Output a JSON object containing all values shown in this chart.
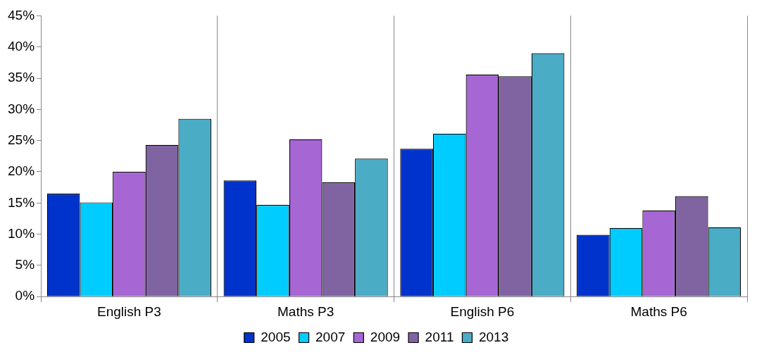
{
  "chart_data": {
    "type": "bar",
    "categories": [
      "English P3",
      "Maths P3",
      "English P6",
      "Maths P6"
    ],
    "series": [
      {
        "name": "2005",
        "color": "#0033cc",
        "values": [
          16.5,
          18.6,
          23.7,
          9.9
        ]
      },
      {
        "name": "2007",
        "color": "#00ccff",
        "values": [
          15.1,
          14.7,
          26.1,
          11.0
        ]
      },
      {
        "name": "2009",
        "color": "#a666d4",
        "values": [
          20.0,
          25.2,
          35.6,
          13.8
        ]
      },
      {
        "name": "2011",
        "color": "#8064a2",
        "values": [
          24.3,
          18.3,
          35.3,
          16.1
        ]
      },
      {
        "name": "2013",
        "color": "#4bacc6",
        "values": [
          28.5,
          22.1,
          39.0,
          11.1
        ]
      }
    ],
    "ylim": [
      0,
      45
    ],
    "yticks": [
      {
        "value": 0,
        "label": "0%"
      },
      {
        "value": 5,
        "label": "5%"
      },
      {
        "value": 10,
        "label": "10%"
      },
      {
        "value": 15,
        "label": "15%"
      },
      {
        "value": 20,
        "label": "20%"
      },
      {
        "value": 25,
        "label": "25%"
      },
      {
        "value": 30,
        "label": "30%"
      },
      {
        "value": 35,
        "label": "35%"
      },
      {
        "value": 40,
        "label": "40%"
      },
      {
        "value": 45,
        "label": "45%"
      }
    ],
    "grid": "x",
    "legend": "bottom"
  }
}
